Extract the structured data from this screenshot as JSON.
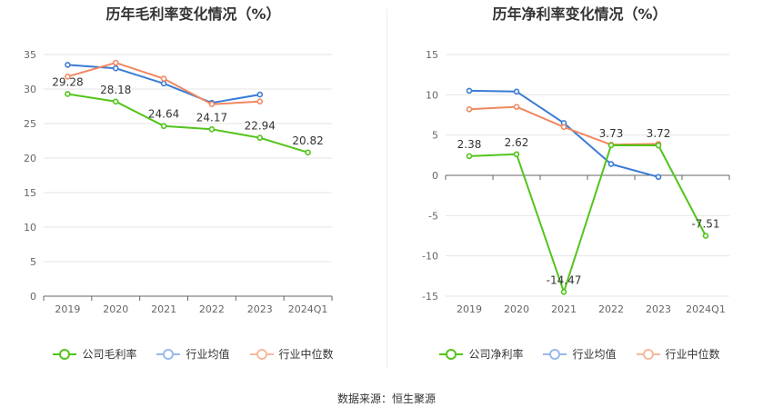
{
  "source_label": "数据来源：恒生聚源",
  "chart_data": [
    {
      "type": "line",
      "title": "历年毛利率变化情况（%）",
      "categories": [
        "2019",
        "2020",
        "2021",
        "2022",
        "2023",
        "2024Q1"
      ],
      "ylim": [
        0,
        35
      ],
      "yticks": [
        0,
        5,
        10,
        15,
        20,
        25,
        30,
        35
      ],
      "grid": true,
      "legend_position": "bottom",
      "series": [
        {
          "name": "公司毛利率",
          "color": "#52c41a",
          "values": [
            29.28,
            28.18,
            24.64,
            24.17,
            22.94,
            20.82
          ],
          "labels": [
            "29.28",
            "28.18",
            "24.64",
            "24.17",
            "22.94",
            "20.82"
          ]
        },
        {
          "name": "行业均值",
          "color": "#3a7bd5",
          "values": [
            33.5,
            33.0,
            30.8,
            28.0,
            29.2,
            null
          ]
        },
        {
          "name": "行业中位数",
          "color": "#f08860",
          "values": [
            31.8,
            33.8,
            31.5,
            27.8,
            28.2,
            null
          ]
        }
      ]
    },
    {
      "type": "line",
      "title": "历年净利率变化情况（%）",
      "categories": [
        "2019",
        "2020",
        "2021",
        "2022",
        "2023",
        "2024Q1"
      ],
      "ylim": [
        -15,
        15
      ],
      "yticks": [
        -15,
        -10,
        -5,
        0,
        5,
        10,
        15
      ],
      "grid": true,
      "legend_position": "bottom",
      "series": [
        {
          "name": "公司净利率",
          "color": "#52c41a",
          "values": [
            2.38,
            2.62,
            -14.47,
            3.73,
            3.72,
            -7.51
          ],
          "labels": [
            "2.38",
            "2.62",
            "-14.47",
            "3.73",
            "3.72",
            "-7.51"
          ]
        },
        {
          "name": "行业均值",
          "color": "#3a7bd5",
          "values": [
            10.5,
            10.4,
            6.5,
            1.4,
            -0.2,
            null
          ]
        },
        {
          "name": "行业中位数",
          "color": "#f08860",
          "values": [
            8.2,
            8.5,
            6.0,
            3.8,
            3.9,
            null
          ]
        }
      ]
    }
  ]
}
